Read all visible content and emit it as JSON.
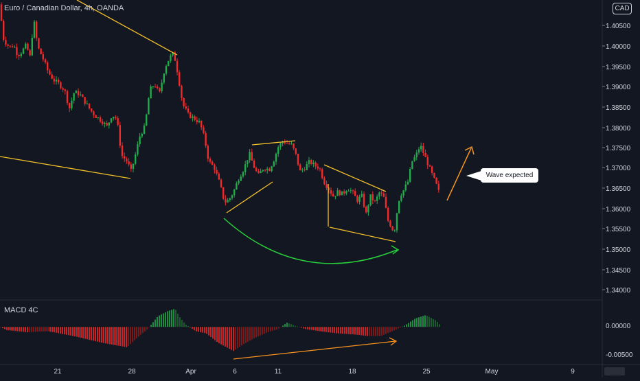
{
  "chart": {
    "title": "Euro / Canadian Dollar, 4h, OANDA",
    "currency": "CAD",
    "indicator_label": "MACD 4C",
    "annotation_text": "Wave expected"
  },
  "colors": {
    "background": "#131722",
    "up": "#26a69a",
    "up_bright": "#22ab4a",
    "down": "#ef2b2b",
    "down_dark": "#8f1b1b",
    "trendline": "#f5c02a",
    "arc": "#27d13c",
    "arrow": "#f7931e",
    "grid": "#1e222d",
    "axis_text": "#d1d4dc"
  },
  "chart_data": [
    {
      "type": "candlestick",
      "title": "Euro / Canadian Dollar, 4h, OANDA",
      "x_tick_labels": [
        "21",
        "28",
        "Apr",
        "6",
        "11",
        "18",
        "25",
        "May",
        "9"
      ],
      "y_tick_labels": [
        "1.40500",
        "1.40000",
        "1.39500",
        "1.39000",
        "1.38500",
        "1.38000",
        "1.37500",
        "1.37000",
        "1.36500",
        "1.36000",
        "1.35500",
        "1.35000",
        "1.34500",
        "1.34000"
      ],
      "ylim": [
        1.3365,
        1.4101
      ],
      "price_path": [
        [
          0,
          1.409
        ],
        [
          4,
          1.401
        ],
        [
          9,
          1.3995
        ],
        [
          14,
          1.3985
        ],
        [
          20,
          1.399
        ],
        [
          26,
          1.3965
        ],
        [
          32,
          1.3975
        ],
        [
          38,
          1.399
        ],
        [
          44,
          1.396
        ],
        [
          49,
          1.4055
        ],
        [
          55,
          1.3985
        ],
        [
          62,
          1.396
        ],
        [
          70,
          1.3925
        ],
        [
          78,
          1.3905
        ],
        [
          86,
          1.3895
        ],
        [
          94,
          1.388
        ],
        [
          101,
          1.3835
        ],
        [
          108,
          1.3875
        ],
        [
          116,
          1.387
        ],
        [
          124,
          1.385
        ],
        [
          132,
          1.383
        ],
        [
          140,
          1.3815
        ],
        [
          148,
          1.3805
        ],
        [
          156,
          1.379
        ],
        [
          163,
          1.382
        ],
        [
          170,
          1.381
        ],
        [
          177,
          1.372
        ],
        [
          185,
          1.3705
        ],
        [
          191,
          1.368
        ],
        [
          197,
          1.372
        ],
        [
          204,
          1.377
        ],
        [
          211,
          1.379
        ],
        [
          218,
          1.388
        ],
        [
          225,
          1.3895
        ],
        [
          232,
          1.387
        ],
        [
          240,
          1.3935
        ],
        [
          247,
          1.396
        ],
        [
          253,
          1.397
        ],
        [
          259,
          1.392
        ],
        [
          266,
          1.3845
        ],
        [
          274,
          1.382
        ],
        [
          283,
          1.381
        ],
        [
          291,
          1.38
        ],
        [
          298,
          1.376
        ],
        [
          304,
          1.3705
        ],
        [
          312,
          1.369
        ],
        [
          320,
          1.365
        ],
        [
          327,
          1.3605
        ],
        [
          333,
          1.361
        ],
        [
          340,
          1.363
        ],
        [
          348,
          1.3665
        ],
        [
          356,
          1.369
        ],
        [
          363,
          1.3725
        ],
        [
          369,
          1.3695
        ],
        [
          376,
          1.367
        ],
        [
          384,
          1.369
        ],
        [
          392,
          1.3685
        ],
        [
          398,
          1.3705
        ],
        [
          405,
          1.374
        ],
        [
          412,
          1.3755
        ],
        [
          418,
          1.375
        ],
        [
          425,
          1.3745
        ],
        [
          431,
          1.372
        ],
        [
          437,
          1.368
        ],
        [
          444,
          1.369
        ],
        [
          451,
          1.3705
        ],
        [
          458,
          1.3695
        ],
        [
          465,
          1.369
        ],
        [
          472,
          1.3655
        ],
        [
          478,
          1.364
        ],
        [
          485,
          1.362
        ],
        [
          492,
          1.363
        ],
        [
          499,
          1.3625
        ],
        [
          506,
          1.364
        ],
        [
          513,
          1.363
        ],
        [
          520,
          1.361
        ],
        [
          527,
          1.362
        ],
        [
          533,
          1.3575
        ],
        [
          539,
          1.362
        ],
        [
          546,
          1.3605
        ],
        [
          553,
          1.363
        ],
        [
          559,
          1.3615
        ],
        [
          565,
          1.356
        ],
        [
          570,
          1.3545
        ],
        [
          574,
          1.353
        ],
        [
          578,
          1.358
        ],
        [
          582,
          1.362
        ],
        [
          588,
          1.3635
        ],
        [
          594,
          1.3655
        ],
        [
          600,
          1.3705
        ],
        [
          606,
          1.372
        ],
        [
          612,
          1.3745
        ],
        [
          618,
          1.372
        ],
        [
          624,
          1.3695
        ],
        [
          630,
          1.367
        ],
        [
          636,
          1.3645
        ],
        [
          641,
          1.362
        ]
      ],
      "macd_histogram": {
        "y_tick_labels": [
          "0.00000",
          "-0.00500"
        ],
        "ylim": [
          -0.0069,
          0.0049
        ],
        "bar_spacing_px": 3,
        "path": [
          [
            0,
            0.0
          ],
          [
            10,
            -0.0006
          ],
          [
            40,
            -0.001
          ],
          [
            70,
            -0.0008
          ],
          [
            110,
            -0.0018
          ],
          [
            150,
            -0.003
          ],
          [
            185,
            -0.0038
          ],
          [
            200,
            -0.002
          ],
          [
            215,
            -0.0004
          ],
          [
            230,
            0.002
          ],
          [
            245,
            0.003
          ],
          [
            255,
            0.0034
          ],
          [
            262,
            0.0018
          ],
          [
            270,
            0.0005
          ],
          [
            285,
            -0.0008
          ],
          [
            300,
            -0.0012
          ],
          [
            318,
            -0.003
          ],
          [
            340,
            -0.0045
          ],
          [
            355,
            -0.0032
          ],
          [
            372,
            -0.002
          ],
          [
            390,
            -0.001
          ],
          [
            405,
            -0.0004
          ],
          [
            418,
            0.0008
          ],
          [
            430,
            0.0002
          ],
          [
            445,
            -0.0004
          ],
          [
            465,
            -0.0008
          ],
          [
            490,
            -0.0012
          ],
          [
            515,
            -0.0014
          ],
          [
            535,
            -0.0017
          ],
          [
            555,
            -0.0017
          ],
          [
            575,
            -0.0006
          ],
          [
            590,
            0.0003
          ],
          [
            605,
            0.0016
          ],
          [
            620,
            0.0022
          ],
          [
            635,
            0.0012
          ],
          [
            642,
            0.0002
          ]
        ]
      }
    }
  ]
}
